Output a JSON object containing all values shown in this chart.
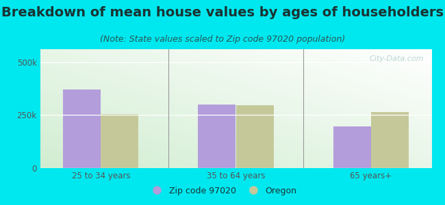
{
  "title": "Breakdown of mean house values by ages of householders",
  "subtitle": "(Note: State values scaled to Zip code 97020 population)",
  "categories": [
    "25 to 34 years",
    "35 to 64 years",
    "65 years+"
  ],
  "zip_values": [
    370000,
    300000,
    195000
  ],
  "oregon_values": [
    255000,
    295000,
    265000
  ],
  "ylim": [
    0,
    560000
  ],
  "yticks": [
    0,
    250000,
    500000
  ],
  "ytick_labels": [
    "0",
    "250k",
    "500k"
  ],
  "zip_color": "#b39ddb",
  "oregon_color": "#c5c99a",
  "background_color": "#00e8ef",
  "legend_zip_label": "Zip code 97020",
  "legend_oregon_label": "Oregon",
  "watermark": "City-Data.com",
  "title_fontsize": 14,
  "subtitle_fontsize": 9,
  "title_color": "#1a3333",
  "subtitle_color": "#2a5555",
  "tick_color": "#555555",
  "bar_width": 0.28,
  "group_positions": [
    0,
    1,
    2
  ]
}
